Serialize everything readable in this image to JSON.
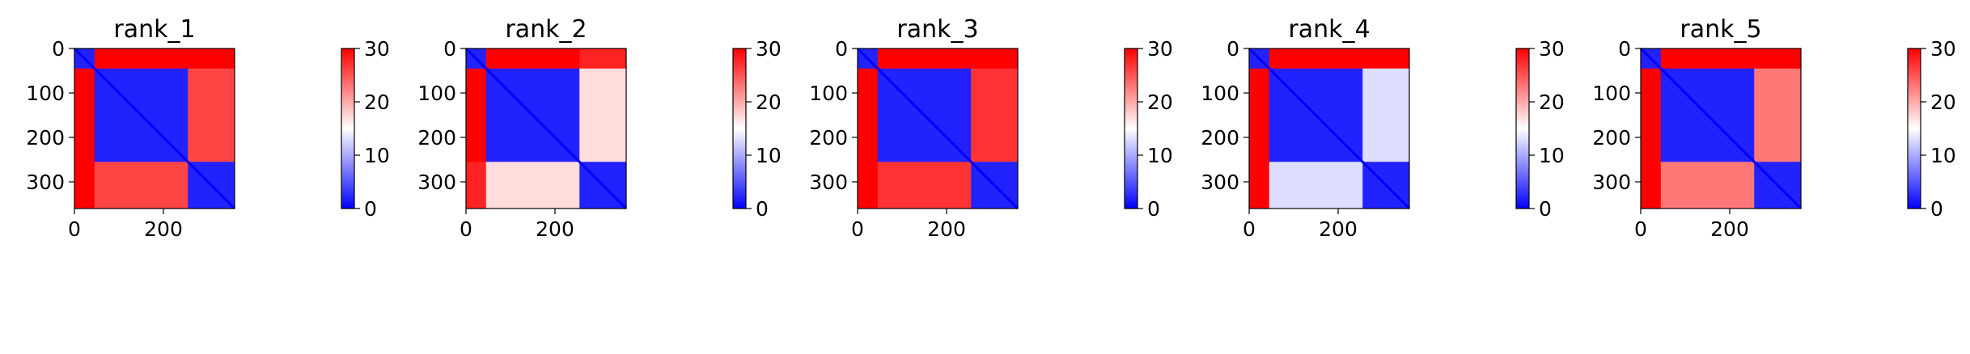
{
  "colors": {
    "low": "#0000ff",
    "mid": "#ffffff",
    "high": "#ff0000",
    "axis": "#000000"
  },
  "chart_data": [
    {
      "type": "heatmap",
      "title": "rank_1",
      "xlabel": "",
      "ylabel": "",
      "xlim": [
        0,
        360
      ],
      "ylim": [
        360,
        0
      ],
      "xticks": [
        0,
        200
      ],
      "yticks": [
        0,
        100,
        200,
        300
      ],
      "colorbar": {
        "min": 0,
        "max": 30,
        "ticks": [
          0,
          10,
          20,
          30
        ],
        "colormap": "bwr"
      },
      "domain_breaks": [
        45,
        255
      ],
      "block_values": [
        [
          2,
          30,
          30
        ],
        [
          30,
          2,
          26
        ],
        [
          30,
          26,
          2
        ]
      ],
      "diagonal_value": 0
    },
    {
      "type": "heatmap",
      "title": "rank_2",
      "xlabel": "",
      "ylabel": "",
      "xlim": [
        0,
        360
      ],
      "ylim": [
        360,
        0
      ],
      "xticks": [
        0,
        200
      ],
      "yticks": [
        0,
        100,
        200,
        300
      ],
      "colorbar": {
        "min": 0,
        "max": 30,
        "ticks": [
          0,
          10,
          20,
          30
        ],
        "colormap": "bwr"
      },
      "domain_breaks": [
        45,
        255
      ],
      "block_values": [
        [
          2,
          30,
          28
        ],
        [
          30,
          2,
          17
        ],
        [
          28,
          17,
          2
        ]
      ],
      "diagonal_value": 0
    },
    {
      "type": "heatmap",
      "title": "rank_3",
      "xlabel": "",
      "ylabel": "",
      "xlim": [
        0,
        360
      ],
      "ylim": [
        360,
        0
      ],
      "xticks": [
        0,
        200
      ],
      "yticks": [
        0,
        100,
        200,
        300
      ],
      "colorbar": {
        "min": 0,
        "max": 30,
        "ticks": [
          0,
          10,
          20,
          30
        ],
        "colormap": "bwr"
      },
      "domain_breaks": [
        45,
        255
      ],
      "block_values": [
        [
          2,
          30,
          30
        ],
        [
          30,
          2,
          27
        ],
        [
          30,
          27,
          2
        ]
      ],
      "diagonal_value": 0
    },
    {
      "type": "heatmap",
      "title": "rank_4",
      "xlabel": "",
      "ylabel": "",
      "xlim": [
        0,
        360
      ],
      "ylim": [
        360,
        0
      ],
      "xticks": [
        0,
        200
      ],
      "yticks": [
        0,
        100,
        200,
        300
      ],
      "colorbar": {
        "min": 0,
        "max": 30,
        "ticks": [
          0,
          10,
          20,
          30
        ],
        "colormap": "bwr"
      },
      "domain_breaks": [
        45,
        255
      ],
      "block_values": [
        [
          2,
          30,
          30
        ],
        [
          30,
          2,
          13
        ],
        [
          30,
          13,
          2
        ]
      ],
      "diagonal_value": 0
    },
    {
      "type": "heatmap",
      "title": "rank_5",
      "xlabel": "",
      "ylabel": "",
      "xlim": [
        0,
        360
      ],
      "ylim": [
        360,
        0
      ],
      "xticks": [
        0,
        200
      ],
      "yticks": [
        0,
        100,
        200,
        300
      ],
      "colorbar": {
        "min": 0,
        "max": 30,
        "ticks": [
          0,
          10,
          20,
          30
        ],
        "colormap": "bwr"
      },
      "domain_breaks": [
        45,
        255
      ],
      "block_values": [
        [
          2,
          30,
          30
        ],
        [
          30,
          2,
          23
        ],
        [
          30,
          23,
          2
        ]
      ],
      "diagonal_value": 0
    }
  ]
}
